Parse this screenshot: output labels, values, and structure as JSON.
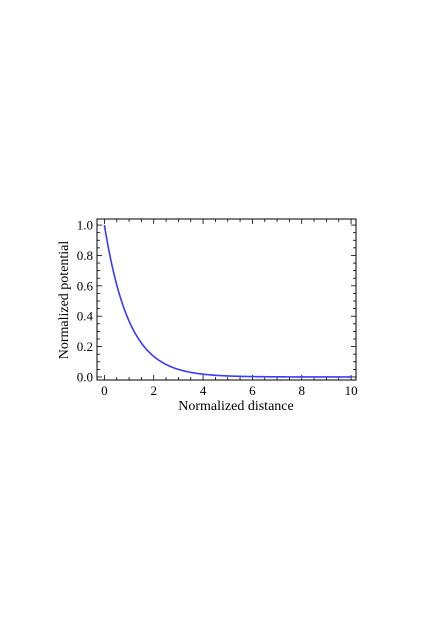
{
  "chart_data": {
    "type": "line",
    "title": "",
    "xlabel": "Normalized distance",
    "ylabel": "Normalized potential",
    "xlim": [
      -0.3,
      10.2
    ],
    "ylim": [
      -0.02,
      1.04
    ],
    "x_ticks": [
      0,
      2,
      4,
      6,
      8,
      10
    ],
    "y_ticks": [
      0.0,
      0.2,
      0.4,
      0.6,
      0.8,
      1.0
    ],
    "x_tick_labels": [
      "0",
      "2",
      "4",
      "6",
      "8",
      "10"
    ],
    "y_tick_labels": [
      "0.0",
      "0.2",
      "0.4",
      "0.6",
      "0.8",
      "1.0"
    ],
    "grid": false,
    "series": [
      {
        "color": "#3a3aff",
        "x": [
          0,
          0.25,
          0.5,
          0.75,
          1,
          1.25,
          1.5,
          1.75,
          2,
          2.5,
          3,
          3.5,
          4,
          4.5,
          5,
          5.5,
          6,
          7,
          8,
          9,
          10
        ],
        "y": [
          1.0,
          0.779,
          0.607,
          0.472,
          0.368,
          0.287,
          0.223,
          0.174,
          0.135,
          0.082,
          0.05,
          0.03,
          0.018,
          0.011,
          0.007,
          0.004,
          0.002,
          0.001,
          0.0,
          0.0,
          0.0
        ]
      }
    ]
  }
}
